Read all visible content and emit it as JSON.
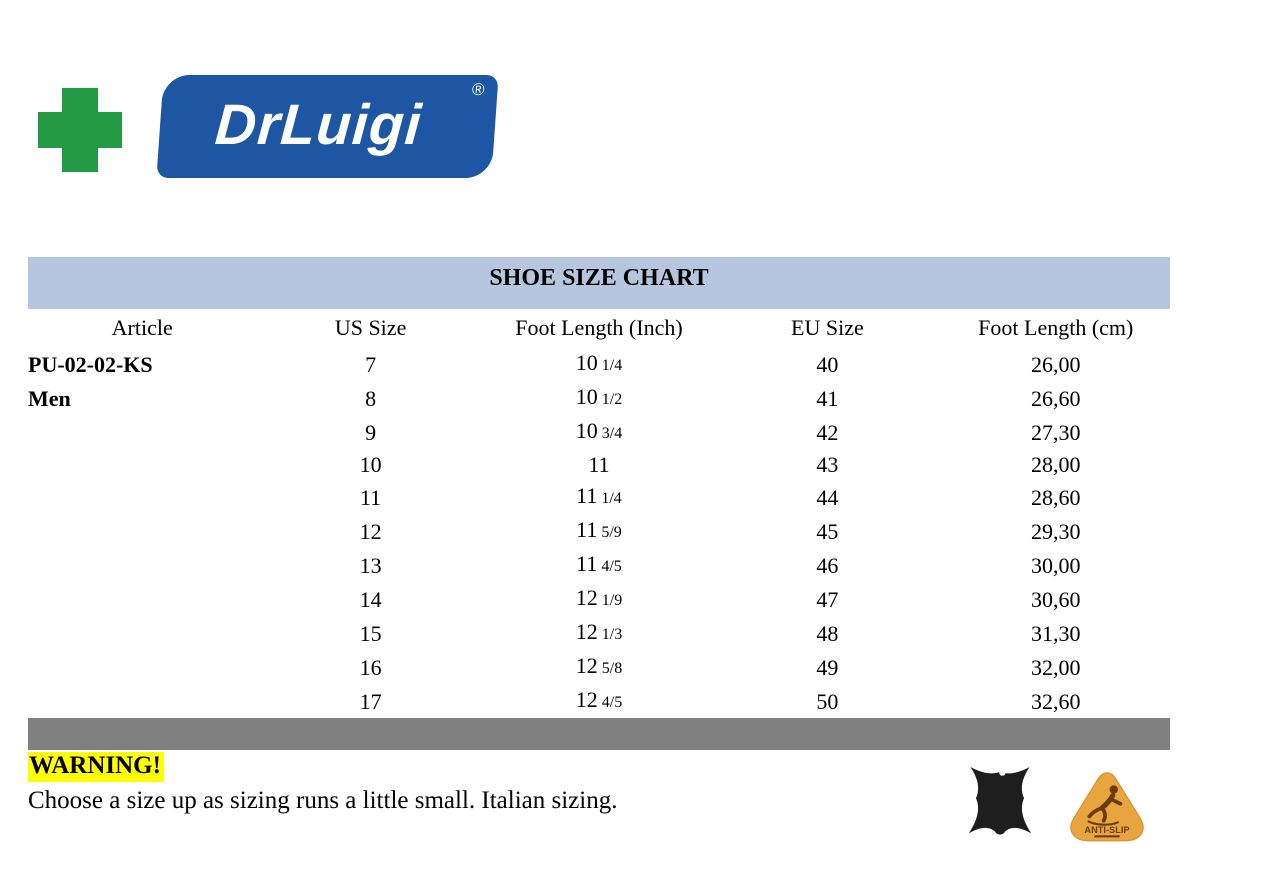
{
  "colors": {
    "green": "#229b44",
    "logo_blue": "#1d56a2",
    "band_blue": "#b5c6de",
    "footer_gray": "#808080",
    "warn_yellow": "#ffff00",
    "leather_black": "#1e1e1e",
    "antislip_orange": "#e8a43e"
  },
  "logo": {
    "brand": "DrLuigi",
    "registered": "®"
  },
  "table": {
    "title": "SHOE SIZE CHART",
    "columns": [
      "Article",
      "US Size",
      "Foot Length (Inch)",
      "EU Size",
      "Foot Length (cm)"
    ],
    "rows": [
      {
        "article": "PU-02-02-KS",
        "us": "7",
        "inch_whole": "10",
        "inch_frac": "1/4",
        "eu": "40",
        "cm": "26,00"
      },
      {
        "article": "Men",
        "us": "8",
        "inch_whole": "10",
        "inch_frac": "1/2",
        "eu": "41",
        "cm": "26,60"
      },
      {
        "article": "",
        "us": "9",
        "inch_whole": "10",
        "inch_frac": "3/4",
        "eu": "42",
        "cm": "27,30"
      },
      {
        "article": "",
        "us": "10",
        "inch_whole": "11",
        "inch_frac": "",
        "eu": "43",
        "cm": "28,00"
      },
      {
        "article": "",
        "us": "11",
        "inch_whole": "11",
        "inch_frac": "1/4",
        "eu": "44",
        "cm": "28,60"
      },
      {
        "article": "",
        "us": "12",
        "inch_whole": "11",
        "inch_frac": "5/9",
        "eu": "45",
        "cm": "29,30"
      },
      {
        "article": "",
        "us": "13",
        "inch_whole": "11",
        "inch_frac": "4/5",
        "eu": "46",
        "cm": "30,00"
      },
      {
        "article": "",
        "us": "14",
        "inch_whole": "12",
        "inch_frac": "1/9",
        "eu": "47",
        "cm": "30,60"
      },
      {
        "article": "",
        "us": "15",
        "inch_whole": "12",
        "inch_frac": "1/3",
        "eu": "48",
        "cm": "31,30"
      },
      {
        "article": "",
        "us": "16",
        "inch_whole": "12",
        "inch_frac": "5/8",
        "eu": "49",
        "cm": "32,00"
      },
      {
        "article": "",
        "us": "17",
        "inch_whole": "12",
        "inch_frac": "4/5",
        "eu": "50",
        "cm": "32,60"
      }
    ]
  },
  "warning": {
    "label": "WARNING!",
    "text": "Choose a size up as sizing runs a little small. Italian sizing."
  },
  "badges": {
    "leather_icon": "genuine-leather",
    "antislip_label": "ANTI-SLIP"
  }
}
